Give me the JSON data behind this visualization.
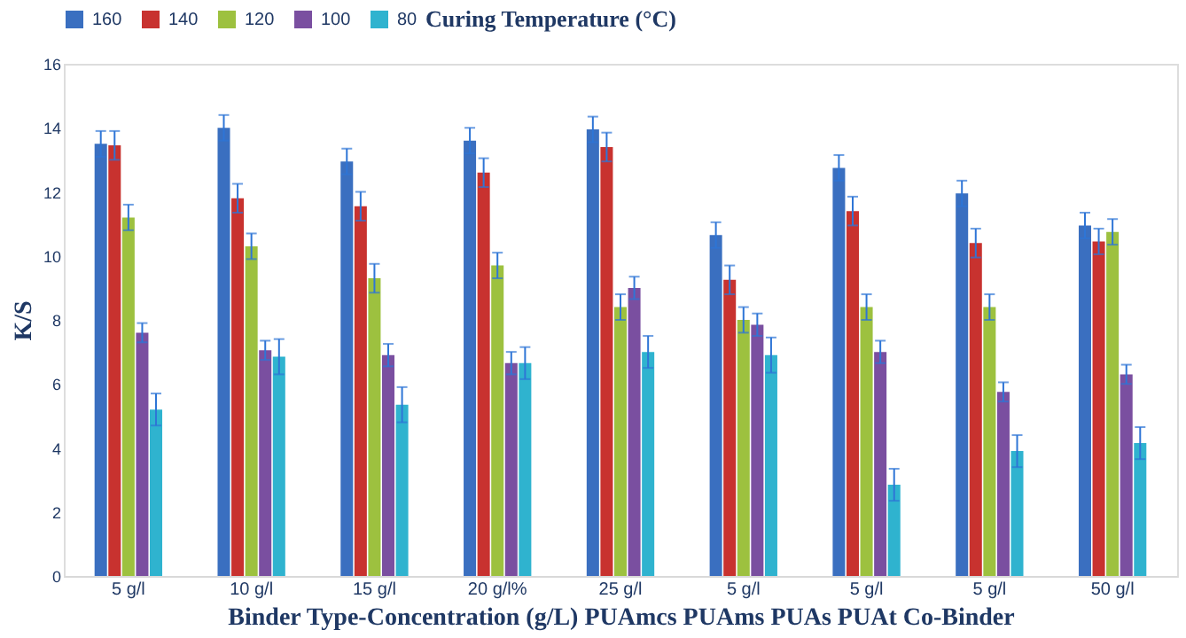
{
  "chart_data": {
    "type": "bar",
    "legend_title": "Curing Temperature (°C)",
    "ylabel": "K/S",
    "xlabel": "Binder Type-Concentration (g/L) PUAmcs PUAms PUAs PUAt Co-Binder",
    "categories": [
      "5 g/l",
      "10 g/l",
      "15 g/l",
      "20 g/l%",
      "25 g/l",
      "5 g/l",
      "5 g/l",
      "5 g/l",
      "50 g/l"
    ],
    "series": [
      {
        "name": "160",
        "color": "#3a6fc0",
        "values": [
          13.5,
          14.0,
          12.95,
          13.6,
          13.95,
          10.65,
          12.75,
          11.95,
          10.95
        ],
        "errors": [
          0.4,
          0.4,
          0.4,
          0.4,
          0.4,
          0.4,
          0.4,
          0.4,
          0.4
        ]
      },
      {
        "name": "140",
        "color": "#c8322f",
        "values": [
          13.45,
          11.8,
          11.55,
          12.6,
          13.4,
          9.25,
          11.4,
          10.4,
          10.45
        ],
        "errors": [
          0.45,
          0.45,
          0.45,
          0.45,
          0.45,
          0.45,
          0.45,
          0.45,
          0.4
        ]
      },
      {
        "name": "120",
        "color": "#9dc13f",
        "values": [
          11.2,
          10.3,
          9.3,
          9.7,
          8.4,
          8.0,
          8.4,
          8.4,
          10.75
        ],
        "errors": [
          0.4,
          0.4,
          0.45,
          0.4,
          0.4,
          0.4,
          0.4,
          0.4,
          0.4
        ]
      },
      {
        "name": "100",
        "color": "#7a4fa0",
        "values": [
          7.6,
          7.05,
          6.9,
          6.65,
          9.0,
          7.85,
          7.0,
          5.75,
          6.3
        ],
        "errors": [
          0.3,
          0.3,
          0.35,
          0.35,
          0.35,
          0.35,
          0.35,
          0.3,
          0.3
        ]
      },
      {
        "name": "80",
        "color": "#2fb3cf",
        "values": [
          5.2,
          6.85,
          5.35,
          6.65,
          7.0,
          6.9,
          2.85,
          3.9,
          4.15
        ],
        "errors": [
          0.5,
          0.55,
          0.55,
          0.5,
          0.5,
          0.55,
          0.5,
          0.5,
          0.5
        ]
      }
    ],
    "ylim": [
      0,
      16
    ],
    "yticks": [
      0,
      2,
      4,
      6,
      8,
      10,
      12,
      14,
      16
    ],
    "grid": false,
    "legend": "top"
  }
}
